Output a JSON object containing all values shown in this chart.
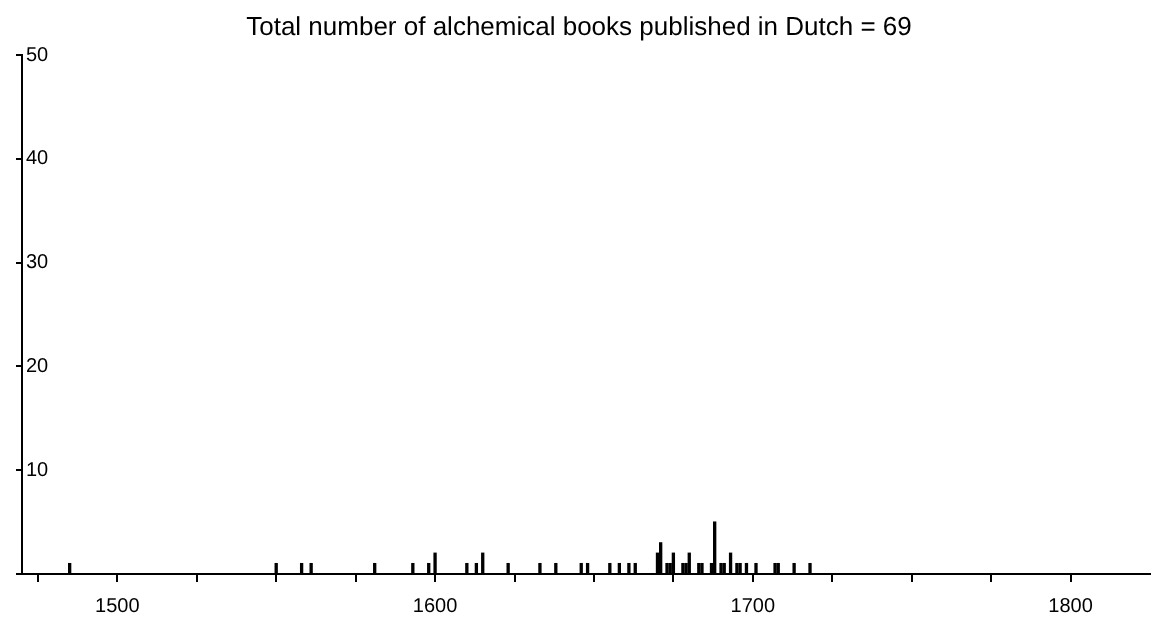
{
  "chart_data": {
    "type": "bar",
    "title": "Total number of alchemical books published in Dutch = 69",
    "x": [
      1485,
      1550,
      1558,
      1561,
      1581,
      1593,
      1598,
      1600,
      1610,
      1613,
      1615,
      1623,
      1633,
      1638,
      1646,
      1648,
      1655,
      1658,
      1661,
      1663,
      1670,
      1671,
      1673,
      1674,
      1675,
      1678,
      1679,
      1680,
      1683,
      1684,
      1687,
      1688,
      1690,
      1691,
      1693,
      1695,
      1696,
      1698,
      1701,
      1707,
      1708,
      1713,
      1718
    ],
    "values": [
      1,
      1,
      1,
      1,
      1,
      1,
      1,
      2,
      1,
      1,
      2,
      1,
      1,
      1,
      1,
      1,
      1,
      1,
      1,
      1,
      2,
      3,
      1,
      1,
      2,
      1,
      1,
      2,
      1,
      1,
      1,
      5,
      1,
      1,
      2,
      1,
      1,
      1,
      1,
      1,
      1,
      1,
      1
    ],
    "color": "#000000",
    "xlim": [
      1470,
      1825
    ],
    "xticks": [
      {
        "value": 1475,
        "label": null
      },
      1500,
      {
        "value": 1525,
        "label": null
      },
      {
        "value": 1550,
        "label": null
      },
      {
        "value": 1575,
        "label": null
      },
      1600,
      {
        "value": 1625,
        "label": null
      },
      {
        "value": 1650,
        "label": null
      },
      {
        "value": 1675,
        "label": null
      },
      1700,
      {
        "value": 1725,
        "label": null
      },
      {
        "value": 1750,
        "label": null
      },
      {
        "value": 1775,
        "label": null
      },
      1800
    ],
    "ylim": [
      0,
      50
    ],
    "yticks": [
      {
        "value": 0,
        "label": null
      },
      10,
      20,
      30,
      40,
      50
    ],
    "grid": false,
    "legend": false
  }
}
